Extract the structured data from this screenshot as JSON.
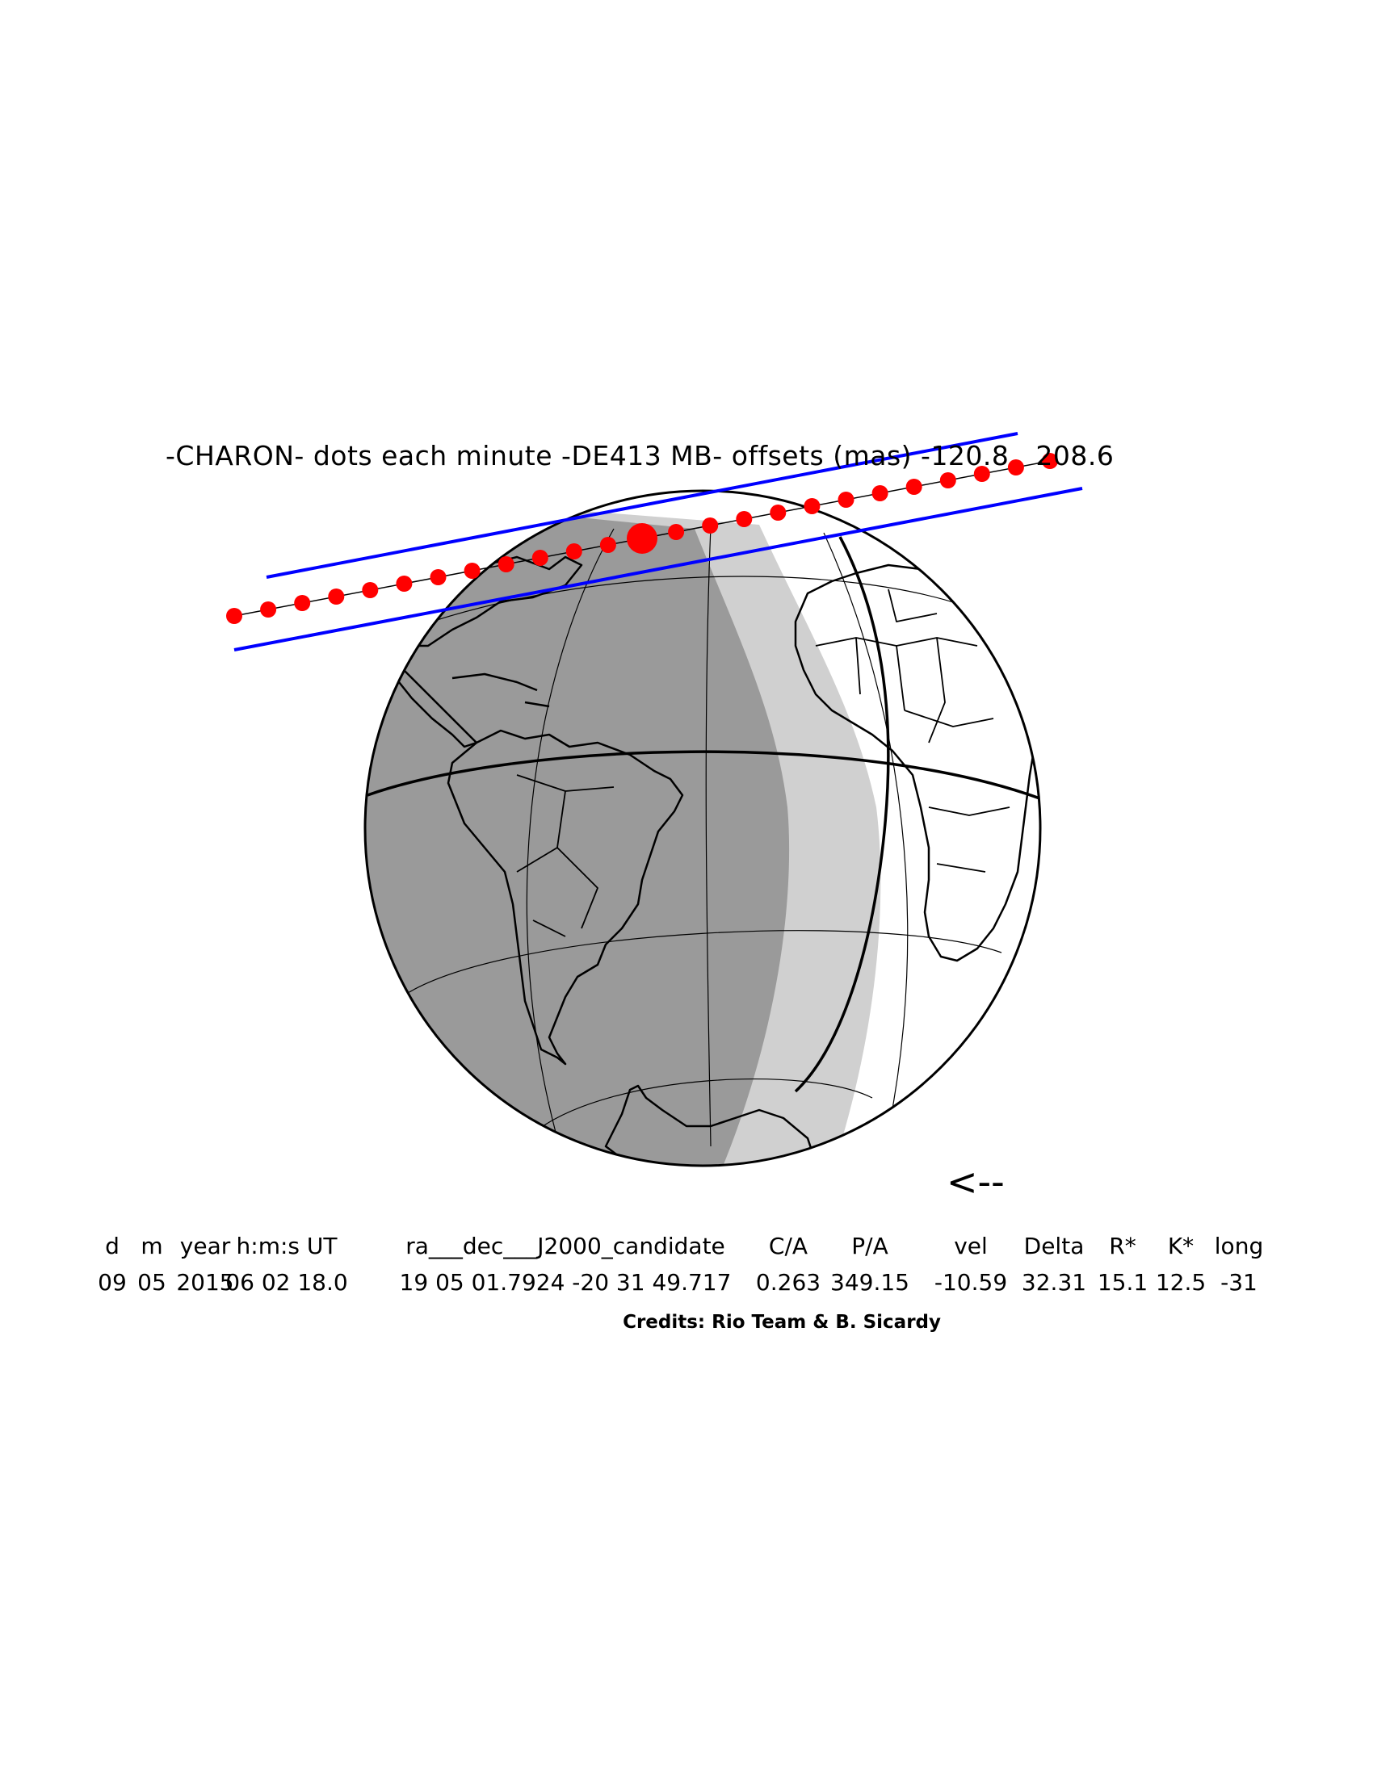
{
  "title": "-CHARON- dots each minute -DE413 MB- offsets (mas) -120.8   208.6",
  "direction_arrow": "<--",
  "table": {
    "headers": [
      "d",
      "m",
      "year",
      "h:m:s UT",
      "ra___dec___J2000_candidate",
      "C/A",
      "P/A",
      "vel",
      "Delta",
      "R*",
      "K*",
      "long"
    ],
    "values": [
      "09",
      "05",
      "2015",
      "06 02 18.0",
      "19 05 01.7924 -20 31 49.717",
      "0.263",
      "349.15",
      "-10.59",
      "32.31",
      "15.1",
      "12.5",
      "-31"
    ]
  },
  "credits": "Credits: Rio Team & B. Sicardy",
  "colors": {
    "night": "#9a9a9a",
    "twilight": "#d0d0d0",
    "day": "#ffffff",
    "path_limits": "#0000ff",
    "dots": "#ff0000",
    "coastlines": "#000000"
  }
}
